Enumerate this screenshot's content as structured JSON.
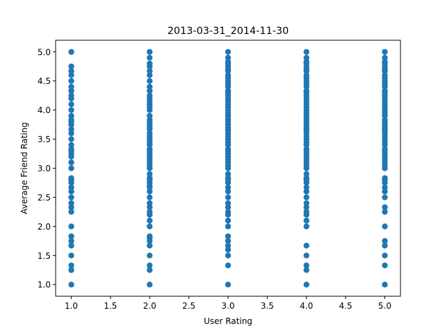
{
  "chart_data": {
    "type": "scatter",
    "title": "2013-03-31_2014-11-30",
    "xlabel": "User Rating",
    "ylabel": "Average Friend Rating",
    "xlim": [
      0.8,
      5.2
    ],
    "ylim": [
      0.8,
      5.2
    ],
    "x_ticks": [
      "1.0",
      "1.5",
      "2.0",
      "2.5",
      "3.0",
      "3.5",
      "4.0",
      "4.5",
      "5.0"
    ],
    "y_ticks": [
      "1.0",
      "1.5",
      "2.0",
      "2.5",
      "3.0",
      "3.5",
      "4.0",
      "4.5",
      "5.0"
    ],
    "grid": false,
    "marker_color": "#1f77b4",
    "series": [
      {
        "x": 1,
        "y": [
          1.0,
          1.25,
          1.33,
          1.5,
          1.67,
          1.75,
          1.83,
          2.0,
          2.25,
          2.33,
          2.4,
          2.5,
          2.6,
          2.67,
          2.75,
          2.8,
          2.83,
          3.0,
          3.1,
          3.2,
          3.25,
          3.3,
          3.33,
          3.4,
          3.5,
          3.6,
          3.67,
          3.75,
          3.8,
          3.83,
          3.9,
          4.0,
          4.1,
          4.2,
          4.25,
          4.33,
          4.4,
          4.5,
          4.6,
          4.67,
          4.75,
          5.0
        ]
      },
      {
        "x": 2,
        "y": [
          1.0,
          1.25,
          1.33,
          1.5,
          1.67,
          1.75,
          1.8,
          1.83,
          2.0,
          2.1,
          2.2,
          2.25,
          2.33,
          2.4,
          2.5,
          2.6,
          2.67,
          2.7,
          2.75,
          2.8,
          2.83,
          2.9,
          3.0,
          3.05,
          3.1,
          3.15,
          3.2,
          3.25,
          3.3,
          3.33,
          3.4,
          3.45,
          3.5,
          3.55,
          3.6,
          3.67,
          3.7,
          3.75,
          3.8,
          3.83,
          3.9,
          4.0,
          4.05,
          4.1,
          4.15,
          4.2,
          4.25,
          4.33,
          4.4,
          4.5,
          4.6,
          4.67,
          4.75,
          4.8,
          4.9,
          5.0
        ]
      },
      {
        "x": 3,
        "y": [
          1.0,
          1.33,
          1.5,
          1.6,
          1.67,
          1.75,
          1.83,
          2.0,
          2.1,
          2.2,
          2.25,
          2.33,
          2.4,
          2.5,
          2.6,
          2.67,
          2.75,
          2.8,
          2.83,
          2.9,
          3.0,
          3.05,
          3.1,
          3.15,
          3.2,
          3.25,
          3.3,
          3.33,
          3.4,
          3.45,
          3.5,
          3.55,
          3.6,
          3.65,
          3.67,
          3.7,
          3.75,
          3.8,
          3.83,
          3.85,
          3.9,
          3.95,
          4.0,
          4.05,
          4.1,
          4.15,
          4.2,
          4.25,
          4.3,
          4.33,
          4.4,
          4.45,
          4.5,
          4.55,
          4.6,
          4.67,
          4.7,
          4.75,
          4.8,
          4.83,
          4.9,
          5.0
        ]
      },
      {
        "x": 4,
        "y": [
          1.0,
          1.25,
          1.33,
          1.5,
          1.67,
          2.0,
          2.1,
          2.2,
          2.25,
          2.33,
          2.4,
          2.5,
          2.6,
          2.67,
          2.75,
          2.8,
          2.83,
          2.9,
          3.0,
          3.05,
          3.1,
          3.15,
          3.2,
          3.25,
          3.3,
          3.33,
          3.4,
          3.45,
          3.5,
          3.55,
          3.6,
          3.65,
          3.67,
          3.7,
          3.75,
          3.8,
          3.83,
          3.85,
          3.9,
          3.95,
          4.0,
          4.05,
          4.1,
          4.15,
          4.2,
          4.25,
          4.3,
          4.33,
          4.4,
          4.45,
          4.5,
          4.55,
          4.6,
          4.67,
          4.7,
          4.75,
          4.8,
          4.83,
          4.9,
          5.0
        ]
      },
      {
        "x": 5,
        "y": [
          1.0,
          1.33,
          1.5,
          1.67,
          1.75,
          2.0,
          2.25,
          2.33,
          2.5,
          2.6,
          2.67,
          2.75,
          2.8,
          2.83,
          3.0,
          3.05,
          3.1,
          3.15,
          3.2,
          3.25,
          3.3,
          3.33,
          3.4,
          3.45,
          3.5,
          3.55,
          3.6,
          3.65,
          3.67,
          3.7,
          3.75,
          3.8,
          3.83,
          3.9,
          3.95,
          4.0,
          4.05,
          4.1,
          4.15,
          4.2,
          4.25,
          4.3,
          4.33,
          4.4,
          4.45,
          4.5,
          4.55,
          4.6,
          4.67,
          4.7,
          4.75,
          4.8,
          4.83,
          4.9,
          5.0
        ]
      }
    ]
  }
}
